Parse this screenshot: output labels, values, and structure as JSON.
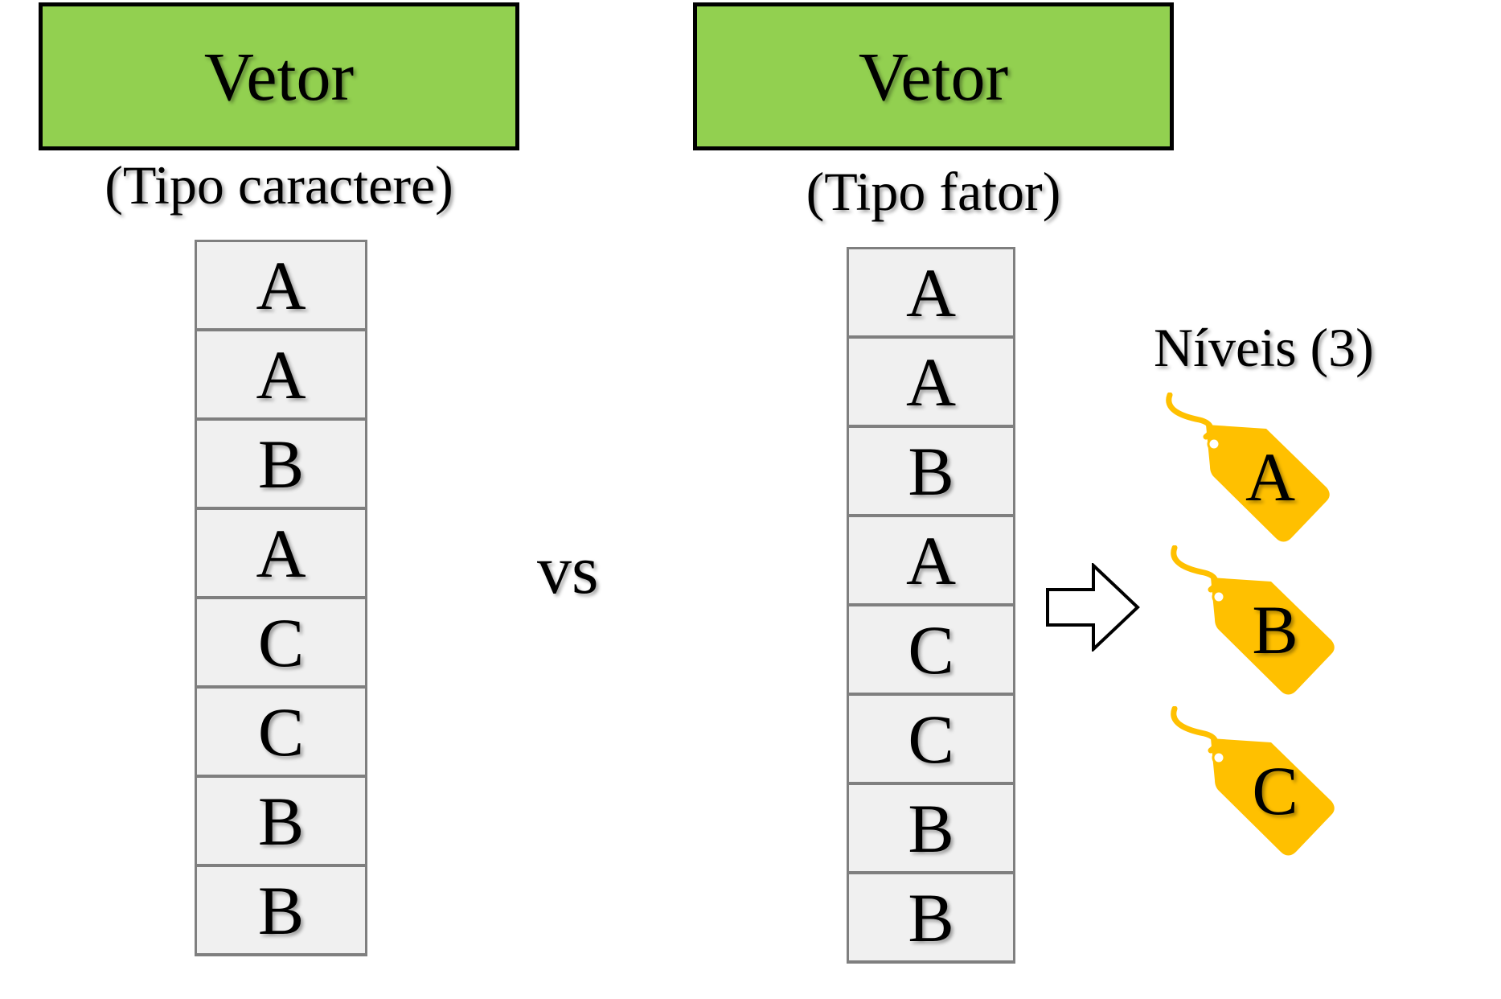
{
  "left": {
    "header": "Vetor",
    "caption": "(Tipo caractere)",
    "cells": [
      "A",
      "A",
      "B",
      "A",
      "C",
      "C",
      "B",
      "B"
    ]
  },
  "vs": "vs",
  "right": {
    "header": "Vetor",
    "caption": "(Tipo fator)",
    "cells": [
      "A",
      "A",
      "B",
      "A",
      "C",
      "C",
      "B",
      "B"
    ]
  },
  "levels": {
    "title": "Níveis (3)",
    "tags": [
      "A",
      "B",
      "C"
    ]
  },
  "colors": {
    "header_fill": "#92d050",
    "cell_fill": "#f0f0f0",
    "cell_border": "#7f7f7f",
    "tag_fill": "#ffc000"
  },
  "icons": {
    "arrow": "right-arrow-icon",
    "tag": "price-tag-icon"
  }
}
